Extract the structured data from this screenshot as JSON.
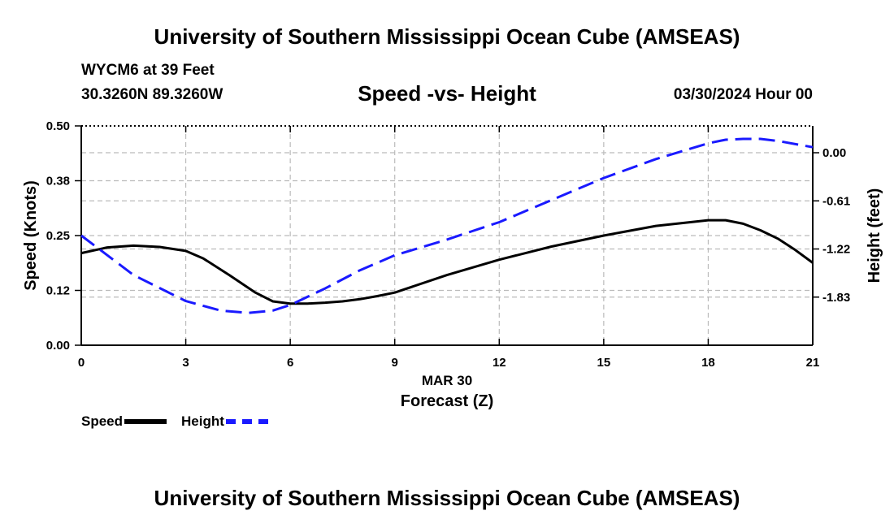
{
  "header": {
    "main_title": "University of Southern Mississippi Ocean Cube (AMSEAS)",
    "station": "WYCM6 at 39 Feet",
    "coords": "30.3260N  89.3260W",
    "plot_title": "Speed -vs- Height",
    "datetime": "03/30/2024 Hour 00"
  },
  "footer": {
    "title": "University of Southern Mississippi Ocean Cube (AMSEAS)"
  },
  "colors": {
    "speed": "#000000",
    "height": "#1a1aff",
    "grid": "#bbbbbb"
  },
  "chart_data": {
    "type": "line",
    "title": "Speed -vs- Height",
    "xlabel": "Forecast (Z)",
    "xsublabel": "MAR 30",
    "ylabel": "Speed (Knots)",
    "y2label": "Height (feet)",
    "xlim": [
      0,
      21
    ],
    "ylim": [
      0,
      0.5
    ],
    "y2lim": [
      -2.44,
      0.34
    ],
    "xticks": [
      0,
      3,
      6,
      9,
      12,
      15,
      18,
      21
    ],
    "yticks": [
      0.0,
      0.125,
      0.25,
      0.375,
      0.5
    ],
    "ytick_labels": [
      "0.00",
      "0.12",
      "0.25",
      "0.38",
      "0.50"
    ],
    "y2ticks": [
      0.0,
      -0.61,
      -1.22,
      -1.83
    ],
    "y2tick_labels": [
      "0.00",
      "-0.61",
      "-1.22",
      "-1.83"
    ],
    "grid": true,
    "legend_position": "bottom-left",
    "series": [
      {
        "name": "Speed",
        "axis": "left",
        "style": "solid",
        "x": [
          0,
          0.75,
          1.5,
          2.25,
          3,
          3.5,
          4.25,
          5,
          5.5,
          6,
          6.5,
          7,
          7.5,
          8,
          8.5,
          9,
          10.5,
          12,
          13.5,
          15,
          16.5,
          18,
          18.5,
          19,
          19.5,
          20,
          20.5,
          21
        ],
        "values": [
          0.21,
          0.223,
          0.227,
          0.224,
          0.215,
          0.198,
          0.16,
          0.12,
          0.1,
          0.095,
          0.095,
          0.097,
          0.1,
          0.105,
          0.112,
          0.12,
          0.16,
          0.195,
          0.225,
          0.25,
          0.272,
          0.285,
          0.285,
          0.277,
          0.262,
          0.243,
          0.217,
          0.188
        ]
      },
      {
        "name": "Height",
        "axis": "right",
        "style": "dashed",
        "x": [
          0,
          1.5,
          3,
          4,
          4.8,
          5.5,
          6,
          7,
          8,
          9,
          10.5,
          12,
          13.5,
          15,
          16.5,
          18,
          18.5,
          19,
          19.5,
          20,
          21
        ],
        "values": [
          -1.05,
          -1.55,
          -1.88,
          -2.0,
          -2.03,
          -2.0,
          -1.93,
          -1.72,
          -1.49,
          -1.3,
          -1.1,
          -0.88,
          -0.6,
          -0.32,
          -0.08,
          0.12,
          0.165,
          0.175,
          0.175,
          0.15,
          0.07
        ]
      }
    ]
  }
}
